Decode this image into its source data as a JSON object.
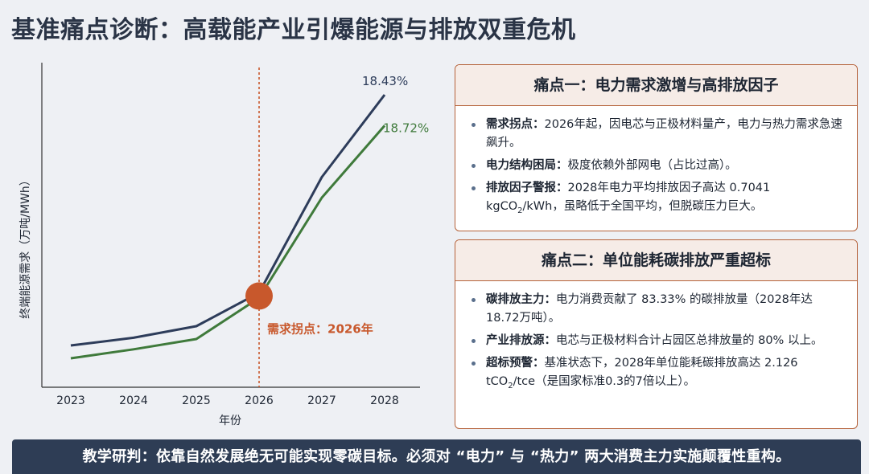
{
  "page": {
    "title": "基准痛点诊断：高载能产业引爆能源与排放双重危机"
  },
  "chart_data": {
    "type": "line",
    "ylabel": "终端能源需求（万吨/MWh）",
    "xlabel": "年份",
    "x": [
      "2023",
      "2024",
      "2025",
      "2026",
      "2027",
      "2028"
    ],
    "ylim": [
      0,
      100
    ],
    "grid": false,
    "series": [
      {
        "color": "#2d3c5a",
        "values": [
          12.5,
          15.5,
          20,
          33,
          78,
          110
        ],
        "end_label": "18.43%",
        "name": ""
      },
      {
        "color": "#3f7a3b",
        "values": [
          7.5,
          11,
          15,
          31,
          70,
          98
        ],
        "end_label": "18.72%",
        "name": ""
      }
    ],
    "annotation": {
      "x": "2026",
      "y": 33,
      "text": "需求拐点：2026年",
      "color": "#c8582c"
    }
  },
  "card1": {
    "title": "痛点一：电力需求激增与高排放因子",
    "items": [
      {
        "bold": "需求拐点：",
        "text": "2026年起，因电芯与正极材料量产，电力与热力需求急速飙升。"
      },
      {
        "bold": "电力结构困局：",
        "text": "极度依赖外部网电（占比过高）。"
      },
      {
        "bold": "排放因子警报：",
        "text": "2028年电力平均排放因子高达 0.7041 kgCO",
        "sub": "2",
        "tail": "/kWh，虽略低于全国平均，但脱碳压力巨大。"
      }
    ]
  },
  "card2": {
    "title": "痛点二：单位能耗碳排放严重超标",
    "items": [
      {
        "bold": "碳排放主力：",
        "text": "电力消费贡献了 83.33% 的碳排放量（2028年达18.72万吨）。"
      },
      {
        "bold": "产业排放源：",
        "text": "电芯与正极材料合计占园区总排放量的 80% 以上。"
      },
      {
        "bold": "超标预警：",
        "text": "基准状态下，2028年单位能耗碳排放高达 2.126 tCO",
        "sub": "2",
        "tail": "/tce（是国家标准0.3的7倍以上）。"
      }
    ]
  },
  "banner": {
    "text": "教学研判：依靠自然发展绝无可能实现零碳目标。必须对 “电力” 与 “热力” 两大消费主力实施颠覆性重构。"
  }
}
